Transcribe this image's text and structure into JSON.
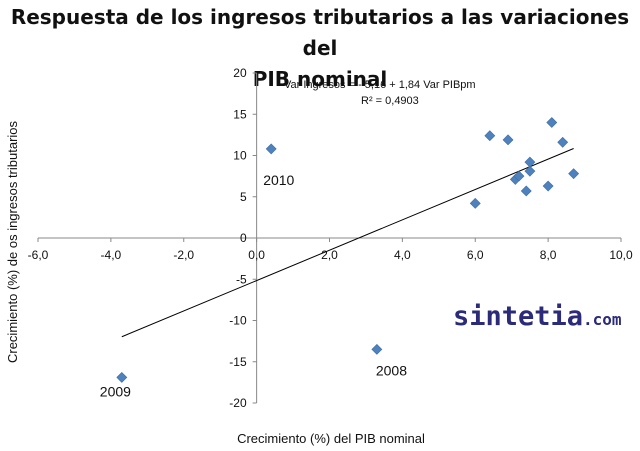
{
  "chart_data": {
    "type": "scatter",
    "title": "Respuesta de los ingresos tributarios a las variaciones del PIB nominal",
    "title_lines": [
      "Respuesta de los ingresos tributarios a las variaciones del",
      "PIB nominal"
    ],
    "xlabel": "Crecimiento (%) del PIB nominal",
    "ylabel": "Crecimiento (%) de os ingresos tributarios",
    "xlim": [
      -6,
      10
    ],
    "ylim": [
      -20,
      20
    ],
    "x_ticks": [
      "-6,0",
      "-4,0",
      "-2,0",
      "0,0",
      "2,0",
      "4,0",
      "6,0",
      "8,0",
      "10,0"
    ],
    "y_ticks": [
      "20",
      "15",
      "10",
      "5",
      "0",
      "-5",
      "-10",
      "-15",
      "-20"
    ],
    "grid": false,
    "series": [
      {
        "points": [
          {
            "x": 0.4,
            "y": 10.8
          },
          {
            "x": 3.3,
            "y": -13.5
          },
          {
            "x": -3.7,
            "y": -16.9
          },
          {
            "x": 6.0,
            "y": 4.2
          },
          {
            "x": 6.4,
            "y": 12.4
          },
          {
            "x": 6.9,
            "y": 11.9
          },
          {
            "x": 7.1,
            "y": 7.1
          },
          {
            "x": 7.2,
            "y": 7.5
          },
          {
            "x": 7.4,
            "y": 5.7
          },
          {
            "x": 7.5,
            "y": 8.1
          },
          {
            "x": 7.5,
            "y": 9.2
          },
          {
            "x": 8.0,
            "y": 6.3
          },
          {
            "x": 8.1,
            "y": 14.0
          },
          {
            "x": 8.4,
            "y": 11.6
          },
          {
            "x": 8.7,
            "y": 7.8
          }
        ],
        "color": "#4F81BD"
      }
    ],
    "trendline": {
      "intercept": -5.16,
      "slope": 1.84,
      "x_range": [
        -3.7,
        8.7
      ],
      "color": "#000000"
    },
    "annotations": [
      {
        "text": "2010",
        "x": 0.4,
        "y": 10.8
      },
      {
        "text": "2008",
        "x": 3.3,
        "y": -13.5
      },
      {
        "text": "2009",
        "x": -3.7,
        "y": -16.9
      }
    ],
    "equation": {
      "line1": "Var Ingresos = - 5,16  + 1,84  Var PIBpm",
      "line2": "R² = 0,4903"
    }
  },
  "watermark": {
    "main": "sintetia",
    "suffix": ".com",
    "color": "#2B2B7A"
  }
}
